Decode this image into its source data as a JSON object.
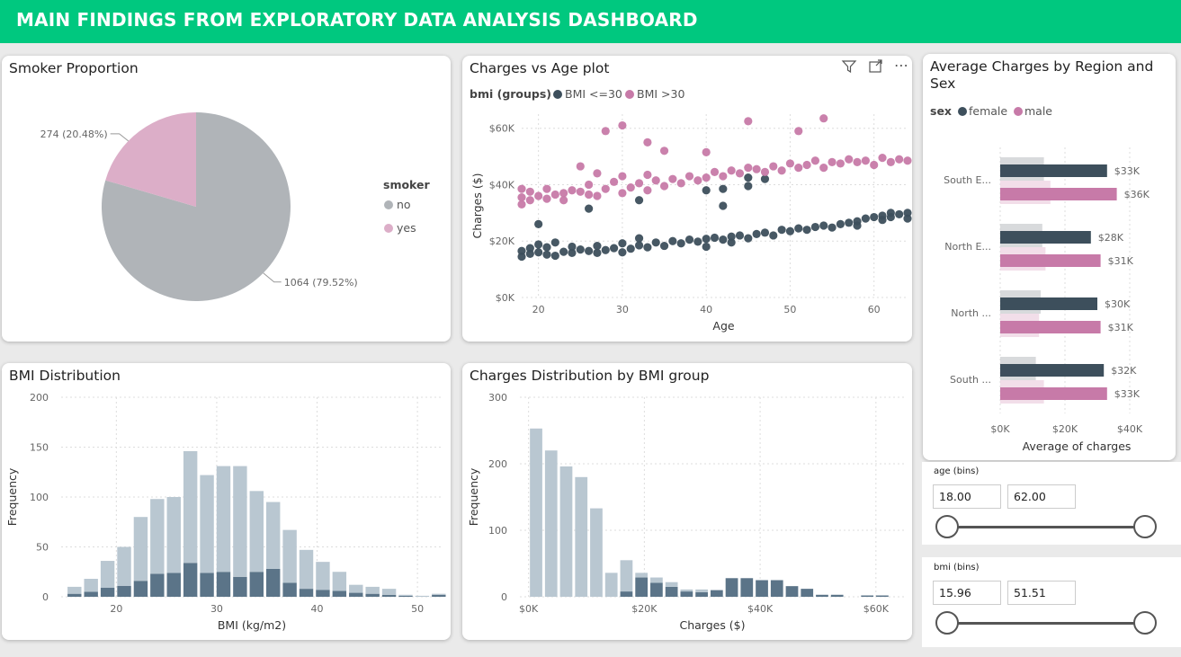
{
  "header": {
    "title": "MAIN FINDINGS FROM EXPLORATORY DATA ANALYSIS DASHBOARD"
  },
  "colors": {
    "header": "#00c87f",
    "dark": "#3d4f5c",
    "pink": "#c77aa8",
    "grey": "#b0b4b8",
    "light_pink": "#dcaec8",
    "steel": "#5b7488",
    "lightsteel": "#b9c7d1"
  },
  "cards": {
    "smoker": {
      "title": "Smoker Proportion"
    },
    "scatter": {
      "title": "Charges vs Age plot"
    },
    "region": {
      "title": "Average Charges by Region and Sex"
    },
    "bmi": {
      "title": "BMI Distribution"
    },
    "charges": {
      "title": "Charges Distribution by BMI group"
    }
  },
  "icons": {
    "filter": "filter-icon",
    "focus": "focus-mode-icon",
    "more": "more-options-icon"
  },
  "slicers": {
    "age": {
      "label": "age (bins)",
      "min": "18.00",
      "max": "62.00"
    },
    "bmi": {
      "label": "bmi (bins)",
      "min": "15.96",
      "max": "51.51"
    }
  },
  "chart_data": [
    {
      "id": "smoker",
      "type": "pie",
      "title": "Smoker Proportion",
      "legend_title": "smoker",
      "legend_position": "right",
      "slices": [
        {
          "name": "no",
          "value": 1064,
          "label": "1064 (79.52%)",
          "color": "#b0b4b8"
        },
        {
          "name": "yes",
          "value": 274,
          "label": "274 (20.48%)",
          "color": "#dcaec8"
        }
      ]
    },
    {
      "id": "scatter",
      "type": "scatter",
      "title": "Charges vs Age plot",
      "legend_title": "bmi (groups)",
      "legend_position": "top-left",
      "xlabel": "Age",
      "ylabel": "Charges ($)",
      "xlim": [
        18,
        64
      ],
      "ylim": [
        0,
        65000
      ],
      "xticks": [
        "20",
        "30",
        "40",
        "50",
        "60"
      ],
      "xtick_values": [
        20,
        30,
        40,
        50,
        60
      ],
      "yticks": [
        "$0K",
        "$20K",
        "$40K",
        "$60K"
      ],
      "ytick_values": [
        0,
        20000,
        40000,
        60000
      ],
      "series": [
        {
          "name": "BMI <=30",
          "color": "#3d4f5c",
          "points": [
            [
              18,
              14500
            ],
            [
              18,
              16500
            ],
            [
              19,
              15500
            ],
            [
              19,
              17500
            ],
            [
              20,
              16000
            ],
            [
              20,
              18800
            ],
            [
              20,
              26000
            ],
            [
              21,
              15200
            ],
            [
              21,
              17800
            ],
            [
              22,
              14800
            ],
            [
              22,
              19500
            ],
            [
              23,
              16200
            ],
            [
              24,
              15800
            ],
            [
              24,
              18000
            ],
            [
              25,
              17000
            ],
            [
              26,
              16500
            ],
            [
              27,
              15800
            ],
            [
              27,
              18300
            ],
            [
              28,
              16800
            ],
            [
              29,
              17500
            ],
            [
              30,
              16000
            ],
            [
              30,
              19200
            ],
            [
              31,
              17300
            ],
            [
              32,
              18500
            ],
            [
              32,
              21000
            ],
            [
              33,
              17800
            ],
            [
              34,
              19500
            ],
            [
              35,
              18300
            ],
            [
              36,
              20000
            ],
            [
              37,
              19200
            ],
            [
              38,
              20500
            ],
            [
              39,
              19800
            ],
            [
              40,
              20800
            ],
            [
              40,
              18000
            ],
            [
              41,
              21200
            ],
            [
              42,
              20500
            ],
            [
              43,
              21600
            ],
            [
              43,
              19500
            ],
            [
              44,
              22000
            ],
            [
              45,
              21000
            ],
            [
              46,
              22500
            ],
            [
              47,
              23000
            ],
            [
              48,
              22000
            ],
            [
              49,
              24000
            ],
            [
              50,
              23500
            ],
            [
              51,
              24500
            ],
            [
              52,
              24000
            ],
            [
              53,
              25000
            ],
            [
              54,
              25500
            ],
            [
              55,
              24800
            ],
            [
              56,
              26000
            ],
            [
              57,
              26500
            ],
            [
              58,
              27000
            ],
            [
              58,
              25500
            ],
            [
              59,
              28000
            ],
            [
              60,
              28500
            ],
            [
              61,
              29000
            ],
            [
              61,
              27500
            ],
            [
              62,
              30000
            ],
            [
              62,
              28500
            ],
            [
              63,
              29500
            ],
            [
              64,
              28000
            ],
            [
              64,
              30000
            ],
            [
              26,
              31500
            ],
            [
              32,
              34500
            ],
            [
              40,
              38000
            ],
            [
              42,
              38500
            ],
            [
              45,
              42500
            ],
            [
              47,
              42000
            ],
            [
              45,
              39500
            ],
            [
              42,
              32500
            ]
          ]
        },
        {
          "name": "BMI >30",
          "color": "#c77aa8",
          "points": [
            [
              18,
              33000
            ],
            [
              18,
              35500
            ],
            [
              18,
              38500
            ],
            [
              19,
              34500
            ],
            [
              19,
              37500
            ],
            [
              20,
              36000
            ],
            [
              21,
              35000
            ],
            [
              21,
              38500
            ],
            [
              22,
              36500
            ],
            [
              23,
              37000
            ],
            [
              23,
              34500
            ],
            [
              24,
              38000
            ],
            [
              25,
              37500
            ],
            [
              26,
              36500
            ],
            [
              26,
              40000
            ],
            [
              27,
              36000
            ],
            [
              27,
              44000
            ],
            [
              28,
              38500
            ],
            [
              29,
              41000
            ],
            [
              30,
              37000
            ],
            [
              30,
              43000
            ],
            [
              31,
              39000
            ],
            [
              32,
              40500
            ],
            [
              33,
              38000
            ],
            [
              33,
              43500
            ],
            [
              34,
              41500
            ],
            [
              35,
              39500
            ],
            [
              36,
              42000
            ],
            [
              37,
              40500
            ],
            [
              38,
              43000
            ],
            [
              39,
              41500
            ],
            [
              40,
              42500
            ],
            [
              41,
              44500
            ],
            [
              42,
              43000
            ],
            [
              43,
              45000
            ],
            [
              44,
              44000
            ],
            [
              45,
              46000
            ],
            [
              46,
              45500
            ],
            [
              47,
              44500
            ],
            [
              48,
              46500
            ],
            [
              49,
              45000
            ],
            [
              50,
              47500
            ],
            [
              51,
              46000
            ],
            [
              52,
              47000
            ],
            [
              53,
              48500
            ],
            [
              54,
              46000
            ],
            [
              55,
              48000
            ],
            [
              56,
              47500
            ],
            [
              57,
              49000
            ],
            [
              58,
              48000
            ],
            [
              59,
              48500
            ],
            [
              60,
              47000
            ],
            [
              61,
              49500
            ],
            [
              62,
              48000
            ],
            [
              63,
              49000
            ],
            [
              64,
              48500
            ],
            [
              28,
              59000
            ],
            [
              30,
              61000
            ],
            [
              33,
              55000
            ],
            [
              35,
              52000
            ],
            [
              45,
              62500
            ],
            [
              54,
              63500
            ],
            [
              51,
              59000
            ],
            [
              40,
              51500
            ],
            [
              25,
              46500
            ]
          ]
        }
      ]
    },
    {
      "id": "region",
      "type": "bar",
      "orientation": "horizontal",
      "title": "Average Charges by Region and Sex",
      "legend_title": "sex",
      "legend_position": "top-left",
      "xlabel": "Average of charges",
      "xlim": [
        0,
        45000
      ],
      "xticks": [
        "$0K",
        "$20K",
        "$40K"
      ],
      "xtick_values": [
        0,
        20000,
        40000
      ],
      "categories": [
        "South E...",
        "North E...",
        "North ...",
        "South ..."
      ],
      "series": [
        {
          "name": "female",
          "color": "#3d4f5c",
          "values": [
            33000,
            28000,
            30000,
            32000
          ],
          "labels": [
            "$33K",
            "$28K",
            "$30K",
            "$32K"
          ],
          "ghost": [
            13500,
            13000,
            12500,
            11000
          ]
        },
        {
          "name": "male",
          "color": "#c77aa8",
          "values": [
            36000,
            31000,
            31000,
            33000
          ],
          "labels": [
            "$36K",
            "$31K",
            "$31K",
            "$33K"
          ],
          "ghost": [
            15500,
            14000,
            12000,
            13500
          ]
        }
      ]
    },
    {
      "id": "bmi",
      "type": "bar",
      "stacked": true,
      "title": "BMI Distribution",
      "xlabel": "BMI (kg/m2)",
      "ylabel": "Frequency",
      "xlim": [
        14.5,
        52.5
      ],
      "ylim": [
        0,
        200
      ],
      "xticks": [
        "20",
        "30",
        "40",
        "50"
      ],
      "xtick_values": [
        20,
        30,
        40,
        50
      ],
      "yticks": [
        "0",
        "50",
        "100",
        "150",
        "200"
      ],
      "ytick_values": [
        0,
        50,
        100,
        150,
        200
      ],
      "bin_starts": [
        15,
        16.65,
        18.3,
        19.95,
        21.6,
        23.25,
        24.9,
        26.55,
        28.2,
        29.85,
        31.5,
        33.15,
        34.8,
        36.45,
        38.1,
        39.75,
        41.4,
        43.05,
        44.7,
        46.35,
        48,
        49.65,
        51.3
      ],
      "bin_width": 1.65,
      "series": [
        {
          "name": "",
          "color": "#5b7488",
          "values": [
            3,
            5,
            9,
            11,
            16,
            23,
            24,
            34,
            24,
            25,
            20,
            25,
            28,
            14,
            8,
            7,
            6,
            4,
            3,
            2,
            1,
            0,
            2
          ]
        },
        {
          "name": "",
          "color": "#b9c7d1",
          "values": [
            7,
            13,
            27,
            39,
            64,
            75,
            76,
            112,
            98,
            106,
            111,
            81,
            67,
            53,
            39,
            28,
            19,
            8,
            7,
            6,
            1,
            1,
            1
          ]
        }
      ]
    },
    {
      "id": "charges",
      "type": "bar",
      "stacked": true,
      "title": "Charges Distribution by BMI group",
      "xlabel": "Charges ($)",
      "ylabel": "Frequency",
      "xlim": [
        -1500,
        65000
      ],
      "ylim": [
        0,
        300
      ],
      "xticks": [
        "$0K",
        "$20K",
        "$40K",
        "$60K"
      ],
      "xtick_values": [
        0,
        20000,
        40000,
        60000
      ],
      "yticks": [
        "0",
        "100",
        "200",
        "300"
      ],
      "ytick_values": [
        0,
        100,
        200,
        300
      ],
      "bin_starts": [
        0,
        2600,
        5200,
        7800,
        10400,
        13000,
        15600,
        18200,
        20800,
        23400,
        26000,
        28600,
        31200,
        33800,
        36400,
        39000,
        41600,
        44200,
        46800,
        49400,
        52000,
        54600,
        57200,
        59800,
        62400
      ],
      "bin_width": 2600,
      "series": [
        {
          "name": "",
          "color": "#5b7488",
          "values": [
            0,
            0,
            0,
            0,
            0,
            0,
            8,
            29,
            21,
            15,
            8,
            7,
            10,
            28,
            28,
            25,
            25,
            16,
            12,
            3,
            3,
            0,
            2,
            2,
            0
          ]
        },
        {
          "name": "",
          "color": "#b9c7d1",
          "values": [
            253,
            220,
            196,
            180,
            133,
            36,
            47,
            7,
            8,
            7,
            3,
            4,
            0,
            0,
            0,
            0,
            0,
            0,
            0,
            0,
            0,
            0,
            0,
            0,
            0
          ]
        }
      ]
    }
  ]
}
